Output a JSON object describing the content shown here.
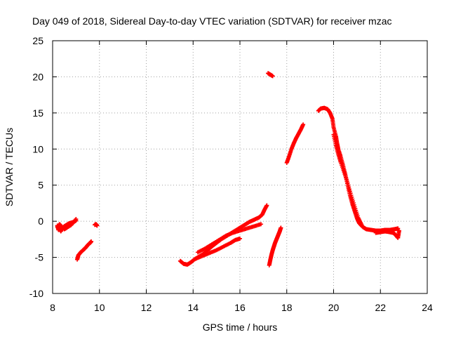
{
  "chart_data": {
    "type": "scatter",
    "title": "Day 049 of 2018, Sidereal Day-to-day VTEC variation (SDTVAR) for receiver mzac",
    "xlabel": "GPS time / hours",
    "ylabel": "SDTVAR / TECUs",
    "xlim": [
      8,
      24
    ],
    "ylim": [
      -10,
      25
    ],
    "xticks": [
      "8",
      "10",
      "12",
      "14",
      "16",
      "18",
      "20",
      "22",
      "24"
    ],
    "yticks": [
      "-10",
      "-5",
      "0",
      "5",
      "10",
      "15",
      "20",
      "25"
    ],
    "grid": true,
    "marker": "plus",
    "colors": {
      "series": "#ff0000",
      "axis": "#000000",
      "grid": "#a0a0a0"
    },
    "series": [
      {
        "name": "SDTVAR",
        "segments": [
          [
            [
              8.2,
              -0.6
            ],
            [
              8.25,
              -1.2
            ],
            [
              8.3,
              -0.9
            ],
            [
              8.35,
              -1.4
            ],
            [
              8.4,
              -1.0
            ],
            [
              8.5,
              -0.7
            ],
            [
              8.6,
              -0.5
            ],
            [
              8.7,
              -0.3
            ],
            [
              8.8,
              -0.2
            ],
            [
              8.9,
              -0.1
            ],
            [
              9.0,
              0.1
            ]
          ],
          [
            [
              8.2,
              -0.8
            ],
            [
              8.3,
              -0.4
            ],
            [
              8.5,
              -1.1
            ],
            [
              8.6,
              -0.9
            ],
            [
              8.8,
              -0.5
            ],
            [
              9.0,
              0.3
            ]
          ],
          [
            [
              9.05,
              -5.3
            ],
            [
              9.1,
              -4.7
            ],
            [
              9.2,
              -4.3
            ],
            [
              9.3,
              -4.0
            ],
            [
              9.4,
              -3.7
            ],
            [
              9.5,
              -3.3
            ],
            [
              9.6,
              -3.0
            ],
            [
              9.65,
              -2.8
            ]
          ],
          [
            [
              9.8,
              -0.5
            ],
            [
              9.85,
              -0.4
            ],
            [
              9.9,
              -0.6
            ]
          ],
          [
            [
              13.45,
              -5.5
            ],
            [
              13.6,
              -5.9
            ],
            [
              13.75,
              -6.0
            ],
            [
              13.9,
              -5.7
            ],
            [
              14.05,
              -5.3
            ],
            [
              14.2,
              -5.0
            ],
            [
              14.4,
              -4.6
            ],
            [
              14.6,
              -4.1
            ],
            [
              14.8,
              -3.5
            ],
            [
              15.0,
              -3.0
            ],
            [
              15.2,
              -2.5
            ],
            [
              15.4,
              -2.1
            ],
            [
              15.6,
              -1.7
            ],
            [
              15.8,
              -1.3
            ],
            [
              16.0,
              -0.9
            ],
            [
              16.2,
              -0.5
            ],
            [
              16.4,
              -0.1
            ],
            [
              16.6,
              0.2
            ],
            [
              16.8,
              0.5
            ],
            [
              16.95,
              0.9
            ],
            [
              17.05,
              1.6
            ],
            [
              17.15,
              2.2
            ]
          ],
          [
            [
              14.2,
              -4.3
            ],
            [
              14.5,
              -3.8
            ],
            [
              14.8,
              -3.2
            ],
            [
              15.1,
              -2.6
            ],
            [
              15.4,
              -2.0
            ],
            [
              15.7,
              -1.6
            ],
            [
              16.0,
              -1.3
            ],
            [
              16.3,
              -1.0
            ],
            [
              16.6,
              -0.7
            ],
            [
              16.9,
              -0.4
            ]
          ],
          [
            [
              14.1,
              -5.2
            ],
            [
              14.4,
              -4.8
            ],
            [
              14.7,
              -4.4
            ],
            [
              15.0,
              -4.0
            ],
            [
              15.3,
              -3.5
            ],
            [
              15.6,
              -3.0
            ],
            [
              15.8,
              -2.6
            ],
            [
              16.0,
              -2.4
            ]
          ],
          [
            [
              17.2,
              20.5
            ],
            [
              17.3,
              20.3
            ],
            [
              17.4,
              20.1
            ]
          ],
          [
            [
              17.25,
              -6.1
            ],
            [
              17.3,
              -5.3
            ],
            [
              17.35,
              -4.6
            ],
            [
              17.4,
              -4.0
            ],
            [
              17.45,
              -3.5
            ],
            [
              17.5,
              -3.0
            ],
            [
              17.55,
              -2.6
            ],
            [
              17.6,
              -2.2
            ],
            [
              17.65,
              -1.8
            ],
            [
              17.7,
              -1.4
            ],
            [
              17.75,
              -0.9
            ]
          ],
          [
            [
              18.0,
              8.1
            ],
            [
              18.1,
              9.0
            ],
            [
              18.2,
              10.0
            ],
            [
              18.3,
              10.8
            ],
            [
              18.4,
              11.5
            ],
            [
              18.5,
              12.1
            ],
            [
              18.6,
              12.7
            ],
            [
              18.7,
              13.4
            ]
          ],
          [
            [
              19.35,
              15.3
            ],
            [
              19.45,
              15.6
            ],
            [
              19.6,
              15.7
            ],
            [
              19.75,
              15.5
            ],
            [
              19.85,
              15.0
            ],
            [
              19.95,
              14.2
            ],
            [
              20.0,
              13.0
            ],
            [
              20.1,
              11.8
            ],
            [
              20.15,
              10.8
            ],
            [
              20.2,
              10.0
            ],
            [
              20.3,
              9.0
            ],
            [
              20.4,
              7.8
            ],
            [
              20.5,
              6.5
            ],
            [
              20.6,
              5.0
            ],
            [
              20.7,
              3.6
            ],
            [
              20.8,
              2.4
            ],
            [
              20.9,
              1.4
            ],
            [
              21.0,
              0.4
            ],
            [
              21.1,
              -0.3
            ],
            [
              21.25,
              -0.8
            ],
            [
              21.4,
              -1.1
            ],
            [
              21.6,
              -1.2
            ],
            [
              21.8,
              -1.3
            ],
            [
              22.0,
              -1.3
            ],
            [
              22.2,
              -1.2
            ],
            [
              22.4,
              -1.2
            ],
            [
              22.6,
              -1.1
            ],
            [
              22.75,
              -1.0
            ]
          ],
          [
            [
              20.0,
              12.0
            ],
            [
              20.1,
              10.5
            ],
            [
              20.2,
              9.3
            ],
            [
              20.3,
              8.2
            ],
            [
              20.45,
              6.8
            ],
            [
              20.6,
              5.3
            ],
            [
              20.75,
              3.6
            ],
            [
              20.9,
              2.0
            ],
            [
              21.05,
              0.5
            ],
            [
              21.2,
              -0.5
            ]
          ],
          [
            [
              21.8,
              -1.6
            ],
            [
              22.0,
              -1.5
            ],
            [
              22.2,
              -1.4
            ],
            [
              22.4,
              -1.5
            ],
            [
              22.55,
              -1.6
            ],
            [
              22.65,
              -1.9
            ],
            [
              22.75,
              -2.3
            ],
            [
              22.8,
              -1.3
            ]
          ]
        ]
      }
    ]
  }
}
